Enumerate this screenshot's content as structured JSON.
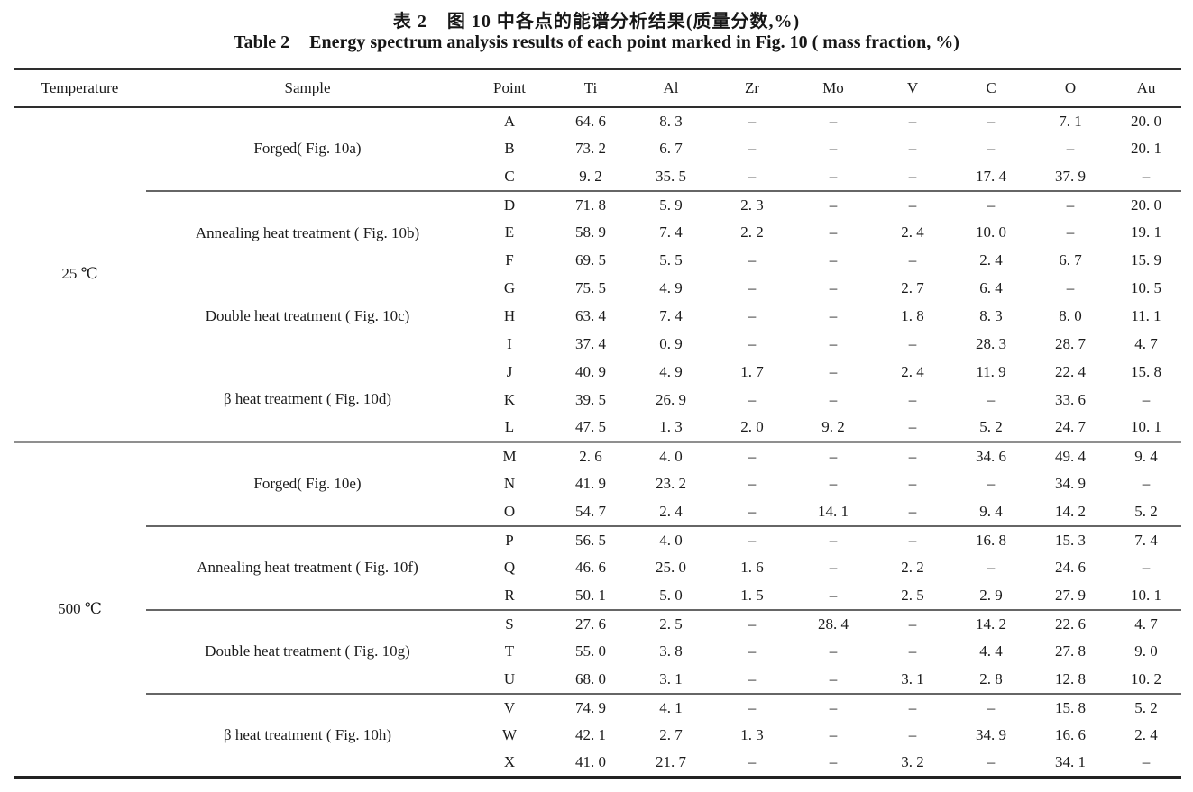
{
  "titles": {
    "zh_prefix": "表 2",
    "zh_text": "图 10 中各点的能谱分析结果(质量分数,%)",
    "en_prefix": "Table 2",
    "en_text": "Energy spectrum analysis results of each point marked in Fig. 10 ( mass fraction, %)"
  },
  "table": {
    "columns": [
      "Temperature",
      "Sample",
      "Point",
      "Ti",
      "Al",
      "Zr",
      "Mo",
      "V",
      "C",
      "O",
      "Au"
    ],
    "temperature_groups": [
      {
        "temperature": "25 ℃",
        "samples": [
          {
            "label": "Forged( Fig. 10a)",
            "divider_above": false,
            "rows": [
              {
                "point": "A",
                "values": [
                  "64. 6",
                  "8. 3",
                  "–",
                  "–",
                  "–",
                  "–",
                  "7. 1",
                  "20. 0"
                ]
              },
              {
                "point": "B",
                "values": [
                  "73. 2",
                  "6. 7",
                  "–",
                  "–",
                  "–",
                  "–",
                  "–",
                  "20. 1"
                ]
              },
              {
                "point": "C",
                "values": [
                  "9. 2",
                  "35. 5",
                  "–",
                  "–",
                  "–",
                  "17. 4",
                  "37. 9",
                  "–"
                ]
              }
            ]
          },
          {
            "label": "Annealing heat treatment ( Fig. 10b)",
            "divider_above": true,
            "rows": [
              {
                "point": "D",
                "values": [
                  "71. 8",
                  "5. 9",
                  "2. 3",
                  "–",
                  "–",
                  "–",
                  "–",
                  "20. 0"
                ]
              },
              {
                "point": "E",
                "values": [
                  "58. 9",
                  "7. 4",
                  "2. 2",
                  "–",
                  "2. 4",
                  "10. 0",
                  "–",
                  "19. 1"
                ]
              },
              {
                "point": "F",
                "values": [
                  "69. 5",
                  "5. 5",
                  "–",
                  "–",
                  "–",
                  "2. 4",
                  "6. 7",
                  "15. 9"
                ]
              }
            ]
          },
          {
            "label": "Double heat treatment ( Fig. 10c)",
            "divider_above": false,
            "rows": [
              {
                "point": "G",
                "values": [
                  "75. 5",
                  "4. 9",
                  "–",
                  "–",
                  "2. 7",
                  "6. 4",
                  "–",
                  "10. 5"
                ]
              },
              {
                "point": "H",
                "values": [
                  "63. 4",
                  "7. 4",
                  "–",
                  "–",
                  "1. 8",
                  "8. 3",
                  "8. 0",
                  "11. 1"
                ]
              },
              {
                "point": "I",
                "values": [
                  "37. 4",
                  "0. 9",
                  "–",
                  "–",
                  "–",
                  "28. 3",
                  "28. 7",
                  "4. 7"
                ]
              }
            ]
          },
          {
            "label": "β heat treatment ( Fig. 10d)",
            "divider_above": false,
            "rows": [
              {
                "point": "J",
                "values": [
                  "40. 9",
                  "4. 9",
                  "1. 7",
                  "–",
                  "2. 4",
                  "11. 9",
                  "22. 4",
                  "15. 8"
                ]
              },
              {
                "point": "K",
                "values": [
                  "39. 5",
                  "26. 9",
                  "–",
                  "–",
                  "–",
                  "–",
                  "33. 6",
                  "–"
                ]
              },
              {
                "point": "L",
                "values": [
                  "47. 5",
                  "1. 3",
                  "2. 0",
                  "9. 2",
                  "–",
                  "5. 2",
                  "24. 7",
                  "10. 1"
                ]
              }
            ]
          }
        ]
      },
      {
        "temperature": "500 ℃",
        "samples": [
          {
            "label": "Forged( Fig. 10e)",
            "divider_above": false,
            "rows": [
              {
                "point": "M",
                "values": [
                  "2. 6",
                  "4. 0",
                  "–",
                  "–",
                  "–",
                  "34. 6",
                  "49. 4",
                  "9. 4"
                ]
              },
              {
                "point": "N",
                "values": [
                  "41. 9",
                  "23. 2",
                  "–",
                  "–",
                  "–",
                  "–",
                  "34. 9",
                  "–"
                ]
              },
              {
                "point": "O",
                "values": [
                  "54. 7",
                  "2. 4",
                  "–",
                  "14. 1",
                  "–",
                  "9. 4",
                  "14. 2",
                  "5. 2"
                ]
              }
            ]
          },
          {
            "label": "Annealing heat treatment ( Fig. 10f)",
            "divider_above": true,
            "rows": [
              {
                "point": "P",
                "values": [
                  "56. 5",
                  "4. 0",
                  "–",
                  "–",
                  "–",
                  "16. 8",
                  "15. 3",
                  "7. 4"
                ]
              },
              {
                "point": "Q",
                "values": [
                  "46. 6",
                  "25. 0",
                  "1. 6",
                  "–",
                  "2. 2",
                  "–",
                  "24. 6",
                  "–"
                ]
              },
              {
                "point": "R",
                "values": [
                  "50. 1",
                  "5. 0",
                  "1. 5",
                  "–",
                  "2. 5",
                  "2. 9",
                  "27. 9",
                  "10. 1"
                ]
              }
            ]
          },
          {
            "label": "Double heat treatment ( Fig. 10g)",
            "divider_above": true,
            "rows": [
              {
                "point": "S",
                "values": [
                  "27. 6",
                  "2. 5",
                  "–",
                  "28. 4",
                  "–",
                  "14. 2",
                  "22. 6",
                  "4. 7"
                ]
              },
              {
                "point": "T",
                "values": [
                  "55. 0",
                  "3. 8",
                  "–",
                  "–",
                  "–",
                  "4. 4",
                  "27. 8",
                  "9. 0"
                ]
              },
              {
                "point": "U",
                "values": [
                  "68. 0",
                  "3. 1",
                  "–",
                  "–",
                  "3. 1",
                  "2. 8",
                  "12. 8",
                  "10. 2"
                ]
              }
            ]
          },
          {
            "label": "β heat treatment ( Fig. 10h)",
            "divider_above": true,
            "rows": [
              {
                "point": "V",
                "values": [
                  "74. 9",
                  "4. 1",
                  "–",
                  "–",
                  "–",
                  "–",
                  "15. 8",
                  "5. 2"
                ]
              },
              {
                "point": "W",
                "values": [
                  "42. 1",
                  "2. 7",
                  "1. 3",
                  "–",
                  "–",
                  "34. 9",
                  "16. 6",
                  "2. 4"
                ]
              },
              {
                "point": "X",
                "values": [
                  "41. 0",
                  "21. 7",
                  "–",
                  "–",
                  "3. 2",
                  "–",
                  "34. 1",
                  "–"
                ]
              }
            ]
          }
        ]
      }
    ]
  }
}
